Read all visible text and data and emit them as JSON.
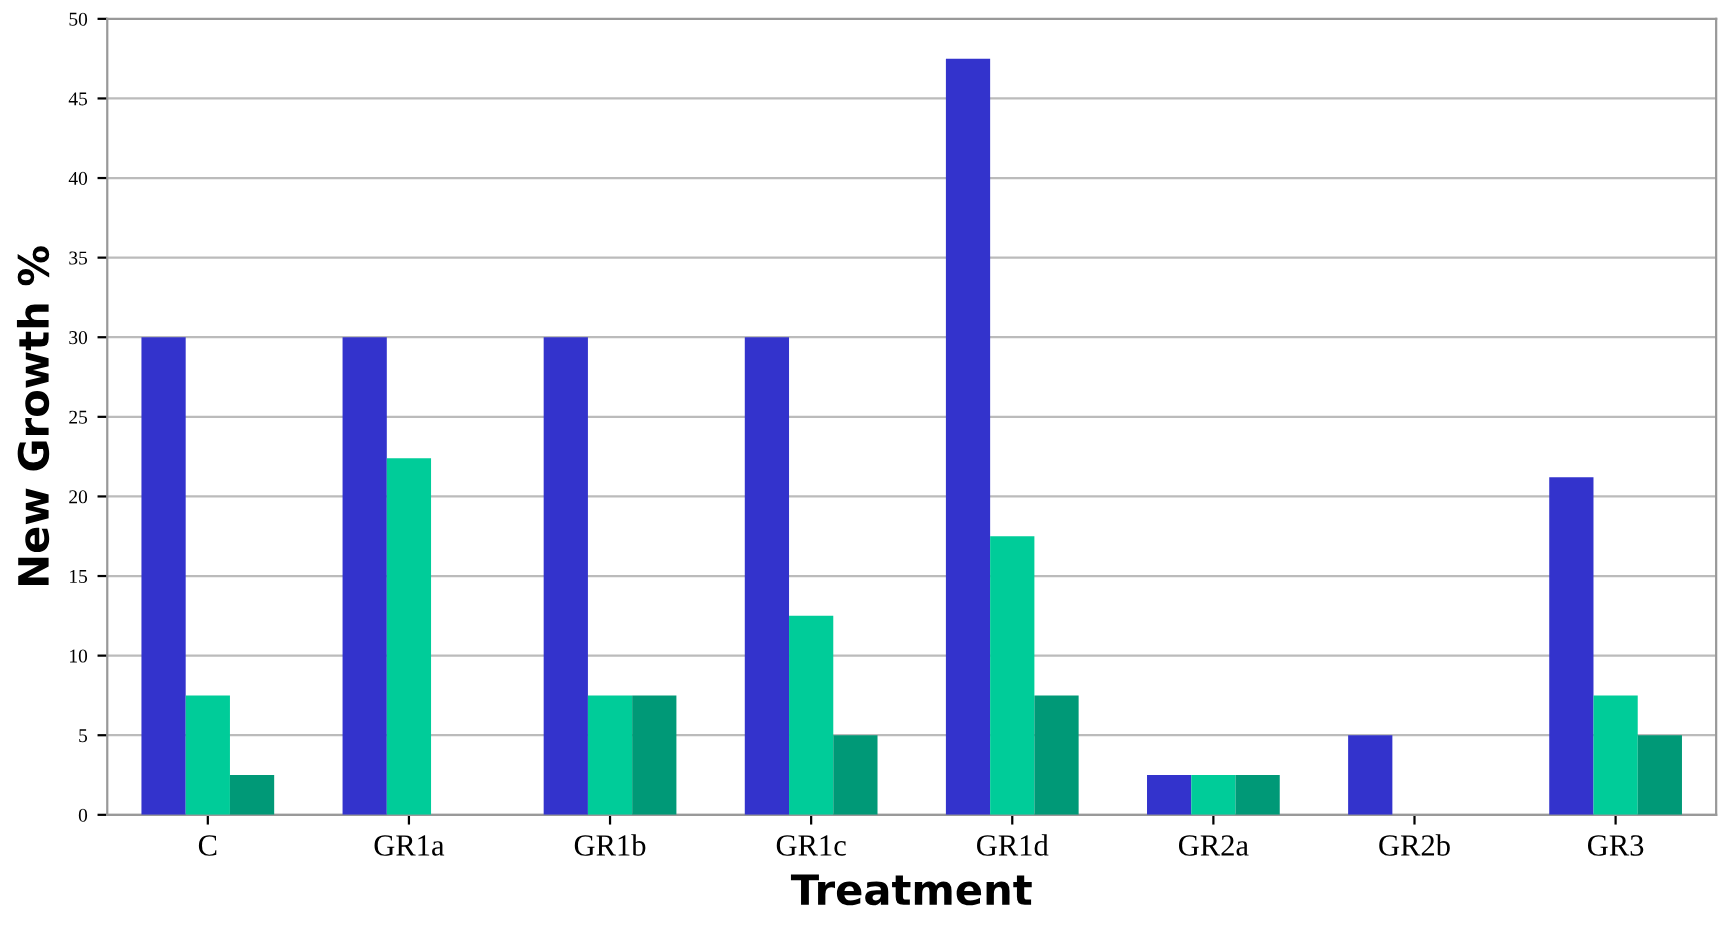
{
  "chart_data": {
    "type": "bar",
    "xlabel": "Treatment",
    "ylabel": "New Growth %",
    "categories": [
      "C",
      "GR1a",
      "GR1b",
      "GR1c",
      "GR1d",
      "GR2a",
      "GR2b",
      "GR3"
    ],
    "series": [
      {
        "color": "#3333cc",
        "values": [
          30,
          30,
          30,
          30,
          47.5,
          2.5,
          5,
          21.2
        ]
      },
      {
        "color": "#00cc99",
        "values": [
          7.5,
          22.4,
          7.5,
          12.5,
          17.5,
          2.5,
          0,
          7.5
        ]
      },
      {
        "color": "#009977",
        "values": [
          2.5,
          0,
          7.5,
          5,
          7.5,
          2.5,
          0,
          5
        ]
      }
    ],
    "ylim": [
      0,
      50
    ],
    "yticks": [
      0,
      5,
      10,
      15,
      20,
      25,
      30,
      35,
      40,
      45,
      50
    ],
    "grid": "y"
  }
}
